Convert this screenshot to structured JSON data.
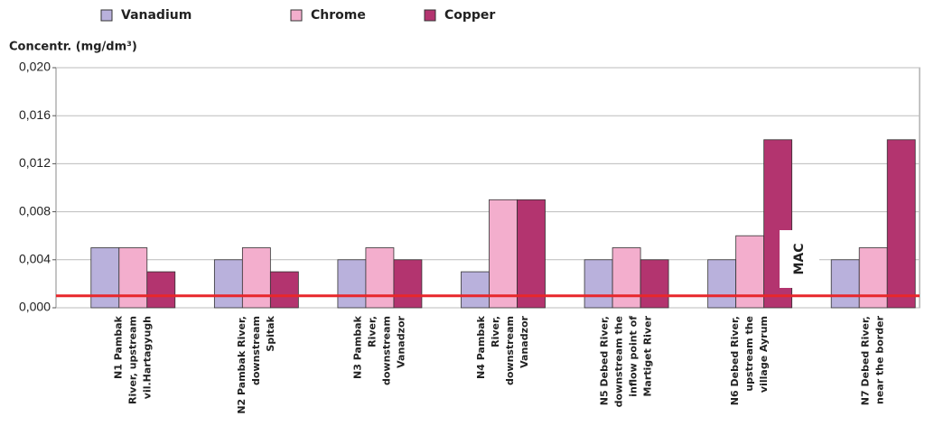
{
  "chart_data": {
    "type": "bar",
    "y_axis_label": "Concentr. (mg/dm³)",
    "categories": [
      "N1 Pambak\nRiver, upstream\nvil.Hartagyugh",
      "N2 Pambak River,\ndownstream\nSpitak",
      "N3 Pambak\nRiver,\ndownstream\nVanadzor",
      "N4 Pambak\nRiver,\ndownstream\nVanadzor",
      "N5 Debed River,\ndownstream the\ninflow point of\nMartiget River",
      "N6 Debed River,\nupstream the\nvillage Ayrum",
      "N7 Debed River,\nnear the border"
    ],
    "series": [
      {
        "name": "Vanadium",
        "color": "#b9b1dc",
        "values": [
          0.005,
          0.004,
          0.004,
          0.003,
          0.004,
          0.004,
          0.004
        ]
      },
      {
        "name": "Chrome",
        "color": "#f3aecd",
        "values": [
          0.005,
          0.005,
          0.005,
          0.009,
          0.005,
          0.006,
          0.005
        ]
      },
      {
        "name": "Copper",
        "color": "#b3346f",
        "values": [
          0.003,
          0.003,
          0.004,
          0.009,
          0.004,
          0.014,
          0.014
        ]
      }
    ],
    "ylim": [
      0,
      0.02
    ],
    "yticks": [
      {
        "value": 0,
        "label": "0,000"
      },
      {
        "value": 0.004,
        "label": "0,004"
      },
      {
        "value": 0.008,
        "label": "0,008"
      },
      {
        "value": 0.012,
        "label": "0,012"
      },
      {
        "value": 0.016,
        "label": "0,016"
      },
      {
        "value": 0.02,
        "label": "0,020"
      }
    ],
    "grid": true,
    "reference_line": {
      "label": "MAC",
      "value": 0.001,
      "color": "#e8272b"
    }
  }
}
